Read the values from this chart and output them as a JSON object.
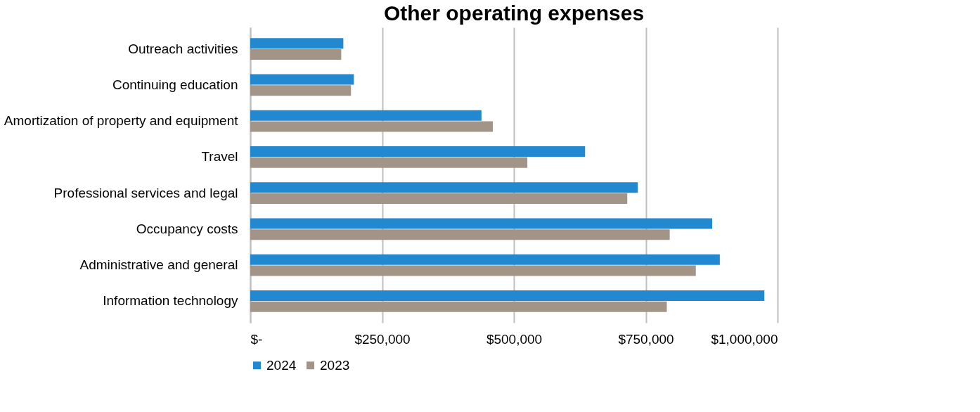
{
  "chart_data": {
    "type": "bar",
    "orientation": "horizontal",
    "title": "Other operating expenses",
    "categories": [
      "Outreach activities",
      "Continuing education",
      "Amortization of property and equipment",
      "Travel",
      "Professional services and legal",
      "Occupancy costs",
      "Administrative and general",
      "Information technology"
    ],
    "series": [
      {
        "name": "2024",
        "color": "#2288d0",
        "values": [
          176500,
          196500,
          438500,
          635000,
          735000,
          876000,
          890500,
          975000
        ]
      },
      {
        "name": "2023",
        "color": "#a39488",
        "values": [
          172500,
          191000,
          460000,
          525500,
          715000,
          795500,
          845000,
          790000
        ]
      }
    ],
    "xlim": [
      0,
      1000000
    ],
    "xticks": [
      {
        "value": 0,
        "label": "$-"
      },
      {
        "value": 250000,
        "label": "$250,000"
      },
      {
        "value": 500000,
        "label": "$500,000"
      },
      {
        "value": 750000,
        "label": "$750,000"
      },
      {
        "value": 1000000,
        "label": "$1,000,000"
      }
    ],
    "grid": "x",
    "legend": "bottom"
  }
}
